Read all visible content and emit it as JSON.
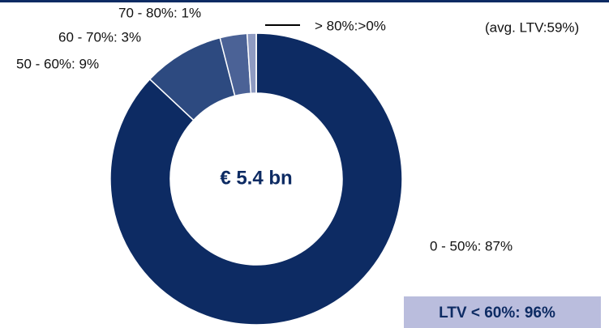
{
  "chart_data": {
    "type": "donut",
    "categories": [
      "0 - 50%:  87%",
      "50 - 60%:  9%",
      "60 - 70%:  3%",
      "70 - 80%:  1%",
      "> 80%:>0%"
    ],
    "values": [
      87,
      9,
      3,
      1,
      0
    ],
    "colors": [
      "#0d2b63",
      "#2d4a80",
      "#4b6296",
      "#8f9bc2",
      "#000000"
    ],
    "center_label": "€ 5.4 bn",
    "annotation": "(avg. LTV:59%)",
    "highlight": "LTV < 60%: 96%"
  }
}
